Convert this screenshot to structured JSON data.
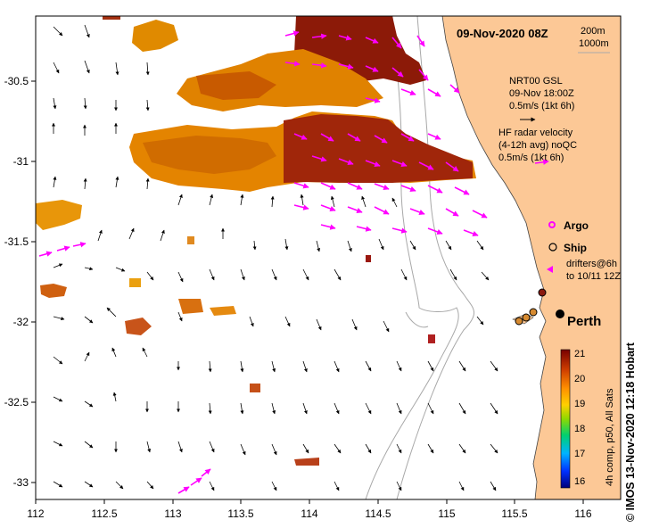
{
  "map": {
    "title": "09-Nov-2020 08Z",
    "scale_200": "200m",
    "scale_1000": "1000m",
    "gsl_line1": "NRT00 GSL",
    "gsl_line2": "09-Nov 18:00Z",
    "gsl_line3": "0.5m/s (1kt 6h)",
    "hf_line1": "HF radar velocity",
    "hf_line2": "(4-12h avg) noQC",
    "hf_line3": "0.5m/s (1kt 6h)",
    "legend_argo": "Argo",
    "legend_ship": "Ship",
    "legend_drifters_1": "drifters@6h",
    "legend_drifters_2": "to 10/11 12Z",
    "city": "Perth",
    "colorbar_label": "4h comp, p50, All Sats",
    "colorbar_ticks": [
      "21",
      "20",
      "19",
      "18",
      "17",
      "16"
    ],
    "credit": "© IMOS 13-Nov-2020 12:18 Hobart",
    "lon_ticks": [
      "112",
      "112.5",
      "113",
      "113.5",
      "114",
      "114.5",
      "115",
      "115.5",
      "116"
    ],
    "lat_ticks": [
      "-30.5",
      "-31",
      "-31.5",
      "-32",
      "-32.5",
      "-33"
    ],
    "colors": {
      "land": "#fcc896",
      "hf_arrow": "#ff00ff",
      "sst_warm": "#a01e00",
      "sst_mid": "#e07800",
      "bathymetry": "#a8a8a8"
    }
  }
}
